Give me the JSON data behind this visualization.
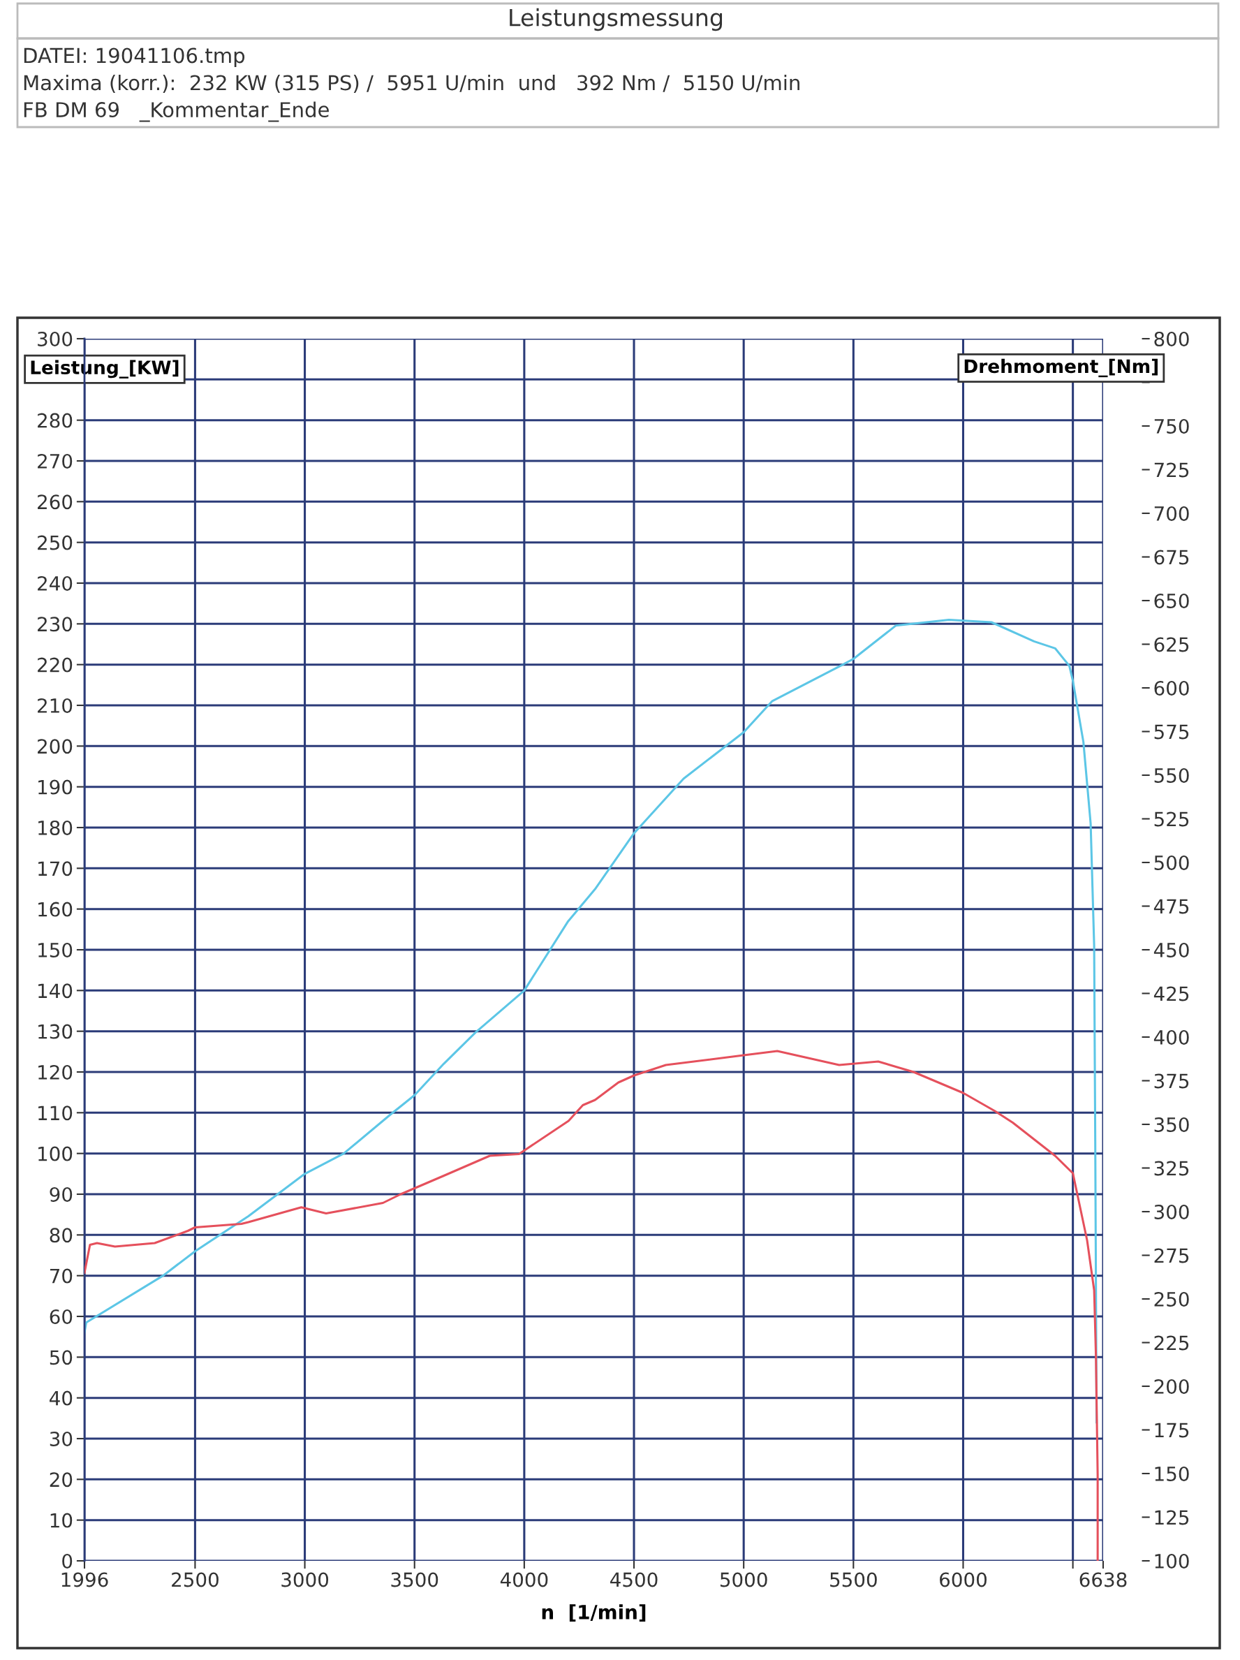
{
  "chart_data": {
    "type": "line",
    "title": "Leistungsmessung",
    "annotations": [
      "DATEI: 19041106.tmp",
      "Maxima (korr.):  232 KW (315 PS) /  5951 U/min  und   392 Nm /  5150 U/min",
      "FB DM 69   _Kommentar_Ende"
    ],
    "xlabel": "n  [1/min]",
    "ylabel": "Leistung_[KW]",
    "y2label": "Drehmoment_[Nm]",
    "xlim": [
      1996,
      6638
    ],
    "xticks": [
      1996,
      2500,
      3000,
      3500,
      4000,
      4500,
      5000,
      5500,
      6000,
      {
        "value": 6500,
        "label": null
      },
      6638
    ],
    "ylim": [
      0,
      300
    ],
    "yticks": [
      0,
      10,
      20,
      30,
      40,
      50,
      60,
      70,
      80,
      90,
      100,
      110,
      120,
      130,
      140,
      150,
      160,
      170,
      180,
      190,
      200,
      210,
      220,
      230,
      240,
      250,
      260,
      270,
      280,
      {
        "value": 290,
        "label": null
      },
      300
    ],
    "y2lim": [
      100,
      800
    ],
    "y2ticks": [
      100,
      125,
      150,
      175,
      200,
      225,
      250,
      275,
      300,
      325,
      350,
      375,
      400,
      425,
      450,
      475,
      500,
      525,
      550,
      575,
      600,
      625,
      650,
      675,
      700,
      725,
      750,
      {
        "value": 775,
        "label": null
      },
      800
    ],
    "grid": true,
    "series": [
      {
        "color": "#5cc6e6",
        "x": [
          1996,
          2004,
          2354,
          2500,
          2743,
          3000,
          3178,
          3389,
          3500,
          3633,
          3778,
          4000,
          4200,
          4323,
          4500,
          4726,
          5000,
          5129,
          5452,
          5500,
          5694,
          5935,
          6129,
          6323,
          6419,
          6484,
          6500,
          6548,
          6581,
          6597,
          6602,
          6608
        ],
        "values": [
          56,
          58.5,
          70,
          76,
          84.6,
          95,
          100,
          109.5,
          114.3,
          122,
          129.7,
          140,
          157,
          164.9,
          178.6,
          192,
          203.4,
          211,
          220,
          221.4,
          229.6,
          231,
          230.4,
          225.7,
          224,
          219.7,
          216,
          201,
          181,
          151,
          103,
          34
        ]
      },
      {
        "color": "#e5505c",
        "axis": "y2",
        "x": [
          1996,
          2021,
          2053,
          2135,
          2316,
          2467,
          2500,
          2711,
          2743,
          2984,
          3097,
          3356,
          3437,
          3632,
          3843,
          3976,
          4202,
          4267,
          4323,
          4429,
          4500,
          4645,
          5000,
          5153,
          5435,
          5613,
          5774,
          6000,
          6145,
          6226,
          6419,
          6500,
          6565,
          6597,
          6605,
          6613,
          6613
        ],
        "values": [
          265,
          281,
          282,
          280,
          282,
          289,
          291,
          293,
          294,
          302.5,
          299,
          305,
          310,
          320.5,
          332,
          333,
          352,
          361,
          364,
          374,
          378,
          384,
          389.6,
          392,
          384,
          386,
          380,
          368,
          357.6,
          351,
          332,
          322,
          283.5,
          255,
          218,
          149,
          100
        ]
      }
    ]
  }
}
